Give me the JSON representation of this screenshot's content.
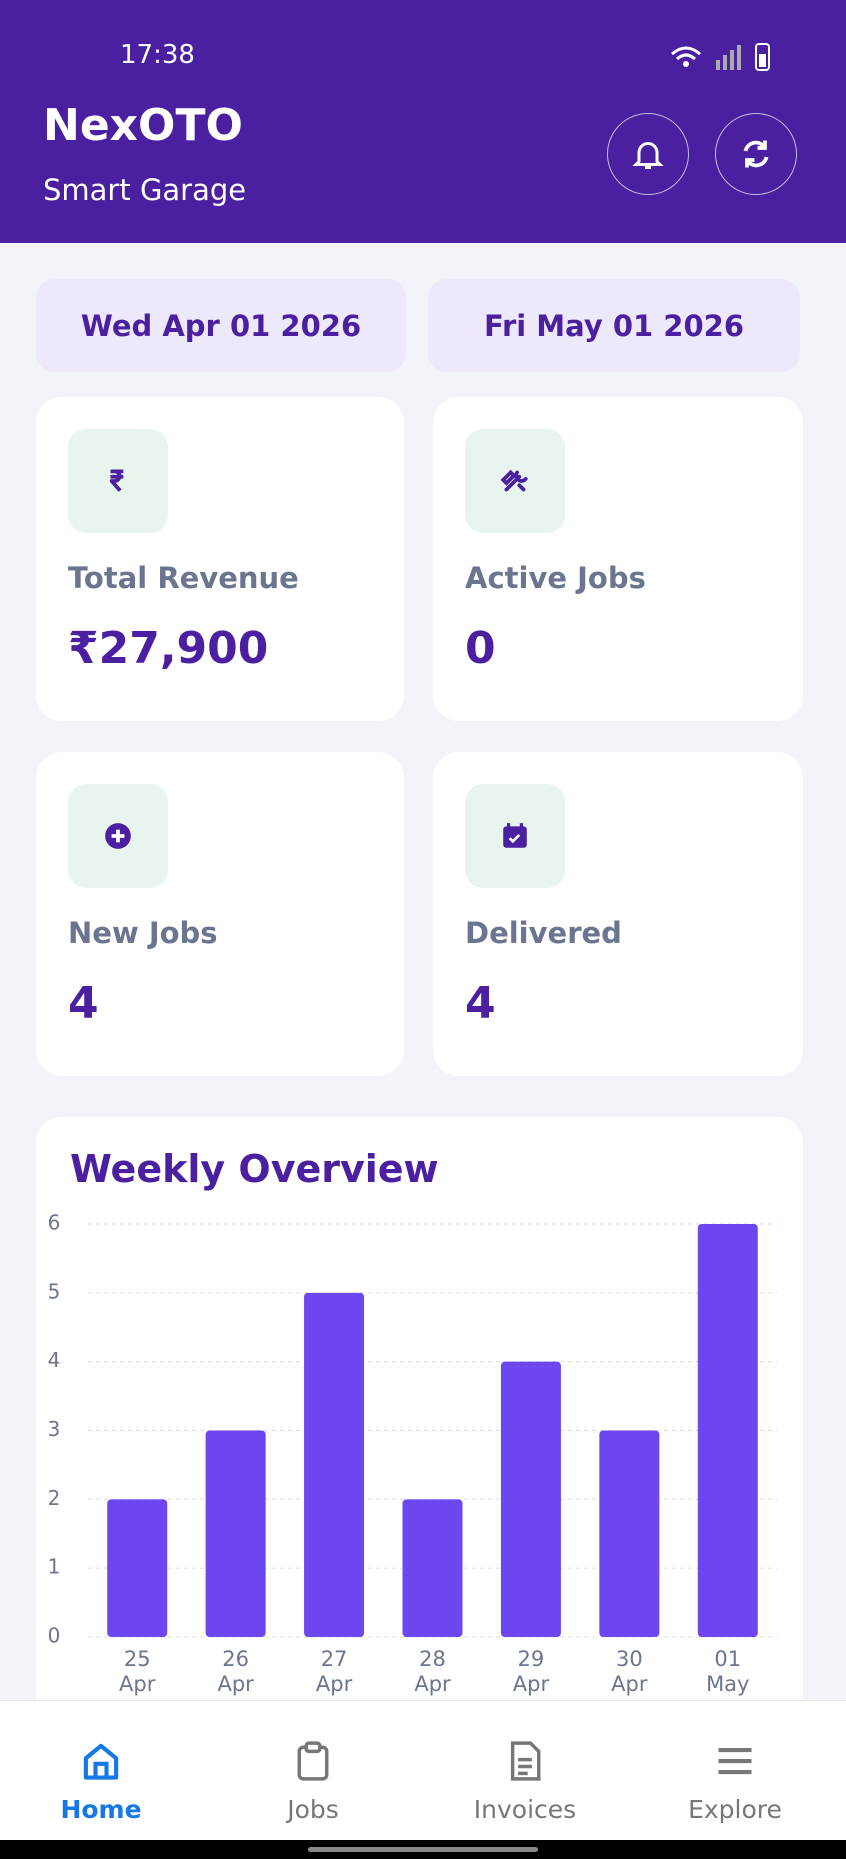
{
  "status_bar": {
    "time": "17:38"
  },
  "header": {
    "title": "NexOTO",
    "subtitle": "Smart Garage"
  },
  "date_range": {
    "start": "Wed Apr 01 2026",
    "end": "Fri May 01 2026"
  },
  "stats": [
    {
      "label": "Total Revenue",
      "value": "₹27,900"
    },
    {
      "label": "Active Jobs",
      "value": "0"
    },
    {
      "label": "New Jobs",
      "value": "4"
    },
    {
      "label": "Delivered",
      "value": "4"
    }
  ],
  "chart_data": {
    "type": "bar",
    "title": "Weekly Overview",
    "categories": [
      "25 Apr",
      "26 Apr",
      "27 Apr",
      "28 Apr",
      "29 Apr",
      "30 Apr",
      "01 May"
    ],
    "values": [
      2,
      3,
      5,
      2,
      4,
      3,
      6
    ],
    "color": "#6c47f0",
    "ylim": [
      0,
      6
    ],
    "yticks": [
      0,
      1,
      2,
      3,
      4,
      5,
      6
    ],
    "grid": true
  },
  "nav": [
    {
      "label": "Home",
      "active": true
    },
    {
      "label": "Jobs",
      "active": false
    },
    {
      "label": "Invoices",
      "active": false
    },
    {
      "label": "Explore",
      "active": false
    }
  ]
}
